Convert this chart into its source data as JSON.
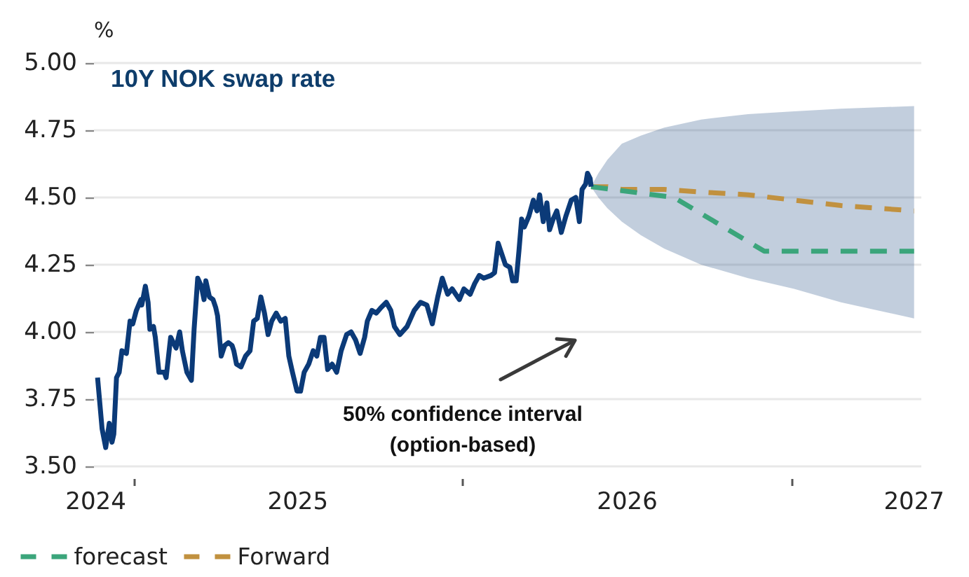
{
  "chart_data": {
    "type": "line",
    "title": "10Y NOK swap rate",
    "ylabel": "%",
    "annotations": [
      "50% confidence interval\n(option-based)"
    ],
    "series": [
      {
        "color": "#0b3a78",
        "line_style": "solid",
        "x": [
          "2024-11-22",
          "2024-11-27",
          "2024-12-01",
          "2024-12-05",
          "2024-12-08",
          "2024-12-10",
          "2024-12-13",
          "2024-12-16",
          "2024-12-19",
          "2024-12-24",
          "2024-12-28",
          "2024-12-31",
          "2025-01-04",
          "2025-01-09",
          "2025-01-10",
          "2025-01-14",
          "2025-01-17",
          "2025-01-19",
          "2025-01-23",
          "2025-01-25",
          "2025-01-29",
          "2025-02-04",
          "2025-02-06",
          "2025-02-11",
          "2025-02-17",
          "2025-02-21",
          "2025-02-24",
          "2025-03-01",
          "2025-03-06",
          "2025-03-09",
          "2025-03-13",
          "2025-03-17",
          "2025-03-20",
          "2025-03-22",
          "2025-03-26",
          "2025-03-30",
          "2025-04-02",
          "2025-04-04",
          "2025-04-08",
          "2025-04-12",
          "2025-04-16",
          "2025-04-20",
          "2025-04-22",
          "2025-04-25",
          "2025-04-30",
          "2025-05-05",
          "2025-05-10",
          "2025-05-14",
          "2025-05-18",
          "2025-05-22",
          "2025-05-26",
          "2025-05-30",
          "2025-06-03",
          "2025-06-08",
          "2025-06-13",
          "2025-06-18",
          "2025-06-22",
          "2025-06-26",
          "2025-07-01",
          "2025-07-05",
          "2025-07-09",
          "2025-07-14",
          "2025-07-19",
          "2025-07-23",
          "2025-07-27",
          "2025-07-31",
          "2025-08-04",
          "2025-08-09",
          "2025-08-14",
          "2025-08-19",
          "2025-08-25",
          "2025-08-30",
          "2025-09-04",
          "2025-09-09",
          "2025-09-14",
          "2025-09-17",
          "2025-09-22",
          "2025-09-27",
          "2025-10-02",
          "2025-10-08",
          "2025-10-13",
          "2025-10-17",
          "2025-10-23",
          "2025-10-31",
          "2025-11-08",
          "2025-11-15",
          "2025-11-22",
          "2025-11-28",
          "2025-12-04",
          "2025-12-09",
          "2025-12-15",
          "2025-12-20",
          "2025-12-24",
          "2025-12-28",
          "2026-01-02",
          "2026-01-09",
          "2026-01-14",
          "2026-01-19",
          "2026-01-24",
          "2026-02-01",
          "2026-02-05",
          "2026-02-09",
          "2026-02-12",
          "2026-02-17",
          "2026-02-22",
          "2026-02-25",
          "2026-03-01",
          "2026-03-04",
          "2026-03-07",
          "2026-03-10",
          "2026-03-15",
          "2026-03-20",
          "2026-03-24",
          "2026-03-27",
          "2026-03-31",
          "2026-04-04",
          "2026-04-07",
          "2026-04-11",
          "2026-04-15",
          "2026-04-20",
          "2026-04-25",
          "2026-05-01",
          "2026-05-06",
          "2026-05-10",
          "2026-05-13",
          "2026-05-17",
          "2026-05-19",
          "2026-05-22",
          "2026-05-23"
        ],
        "values": [
          3.83,
          3.64,
          3.57,
          3.66,
          3.59,
          3.62,
          3.83,
          3.85,
          3.93,
          3.92,
          4.04,
          4.03,
          4.08,
          4.12,
          4.1,
          4.17,
          4.11,
          4.01,
          4.02,
          3.98,
          3.85,
          3.85,
          3.83,
          3.98,
          3.94,
          4.0,
          3.93,
          3.85,
          3.82,
          4.01,
          4.2,
          4.17,
          4.12,
          4.19,
          4.13,
          4.12,
          4.09,
          4.06,
          3.91,
          3.95,
          3.96,
          3.95,
          3.93,
          3.88,
          3.87,
          3.91,
          3.93,
          4.04,
          4.05,
          4.13,
          4.07,
          3.99,
          4.04,
          4.07,
          4.04,
          4.05,
          3.91,
          3.85,
          3.78,
          3.78,
          3.85,
          3.88,
          3.93,
          3.91,
          3.98,
          3.98,
          3.86,
          3.88,
          3.85,
          3.93,
          3.99,
          4.0,
          3.97,
          3.92,
          3.98,
          4.04,
          4.08,
          4.07,
          4.09,
          4.11,
          4.08,
          4.02,
          3.99,
          4.02,
          4.08,
          4.11,
          4.1,
          4.03,
          4.13,
          4.2,
          4.14,
          4.16,
          4.14,
          4.12,
          4.16,
          4.14,
          4.18,
          4.21,
          4.2,
          4.21,
          4.22,
          4.33,
          4.3,
          4.25,
          4.24,
          4.19,
          4.19,
          4.3,
          4.42,
          4.39,
          4.43,
          4.49,
          4.45,
          4.51,
          4.41,
          4.48,
          4.38,
          4.42,
          4.45,
          4.37,
          4.43,
          4.49,
          4.5,
          4.41,
          4.53,
          4.55,
          4.59,
          4.57,
          4.54
        ]
      },
      {
        "name": "forecast",
        "color": "#3ba57b",
        "line_style": "dashed",
        "x": [
          "2026-05-23",
          "2026-08-23",
          "2026-12-01",
          "2027-05-16"
        ],
        "values": [
          4.54,
          4.5,
          4.3,
          4.3
        ]
      },
      {
        "name": "Forward",
        "color": "#c1913f",
        "line_style": "dashed",
        "x": [
          "2026-05-23",
          "2026-05-31",
          "2026-06-10",
          "2026-06-26",
          "2026-07-17",
          "2026-08-12",
          "2026-09-22",
          "2026-11-13",
          "2027-01-03",
          "2027-02-24",
          "2027-05-16"
        ],
        "values": [
          4.54,
          4.54,
          4.54,
          4.53,
          4.53,
          4.53,
          4.52,
          4.51,
          4.49,
          4.47,
          4.45
        ],
        "lower": [
          4.54,
          4.5,
          4.46,
          4.41,
          4.36,
          4.31,
          4.25,
          4.2,
          4.16,
          4.11,
          4.05
        ],
        "upper": [
          4.54,
          4.59,
          4.64,
          4.7,
          4.73,
          4.76,
          4.79,
          4.81,
          4.82,
          4.83,
          4.84
        ]
      }
    ],
    "xlim": [
      "2024-11-18",
      "2027-05-24"
    ],
    "xticks": [
      {
        "value": "2024-11-20",
        "label": "2024"
      },
      {
        "value": "2025-01-01",
        "label": null
      },
      {
        "value": "2025-07-02",
        "label": "2025"
      },
      {
        "value": "2026-01-01",
        "label": null
      },
      {
        "value": "2026-07-02",
        "label": "2026"
      },
      {
        "value": "2027-01-01",
        "label": null
      },
      {
        "value": "2027-05-16",
        "label": "2027"
      }
    ],
    "ylim": [
      3.5,
      5
    ],
    "yticks": [
      {
        "value": 3.5,
        "label": "3.50"
      },
      {
        "value": 3.75,
        "label": "3.75"
      },
      {
        "value": 4,
        "label": "4.00"
      },
      {
        "value": 4.25,
        "label": "4.25"
      },
      {
        "value": 4.5,
        "label": "4.50"
      },
      {
        "value": 4.75,
        "label": "4.75"
      },
      {
        "value": 5,
        "label": "5.00"
      }
    ],
    "grid": "y",
    "legend": "bottom left",
    "marker": "none"
  }
}
